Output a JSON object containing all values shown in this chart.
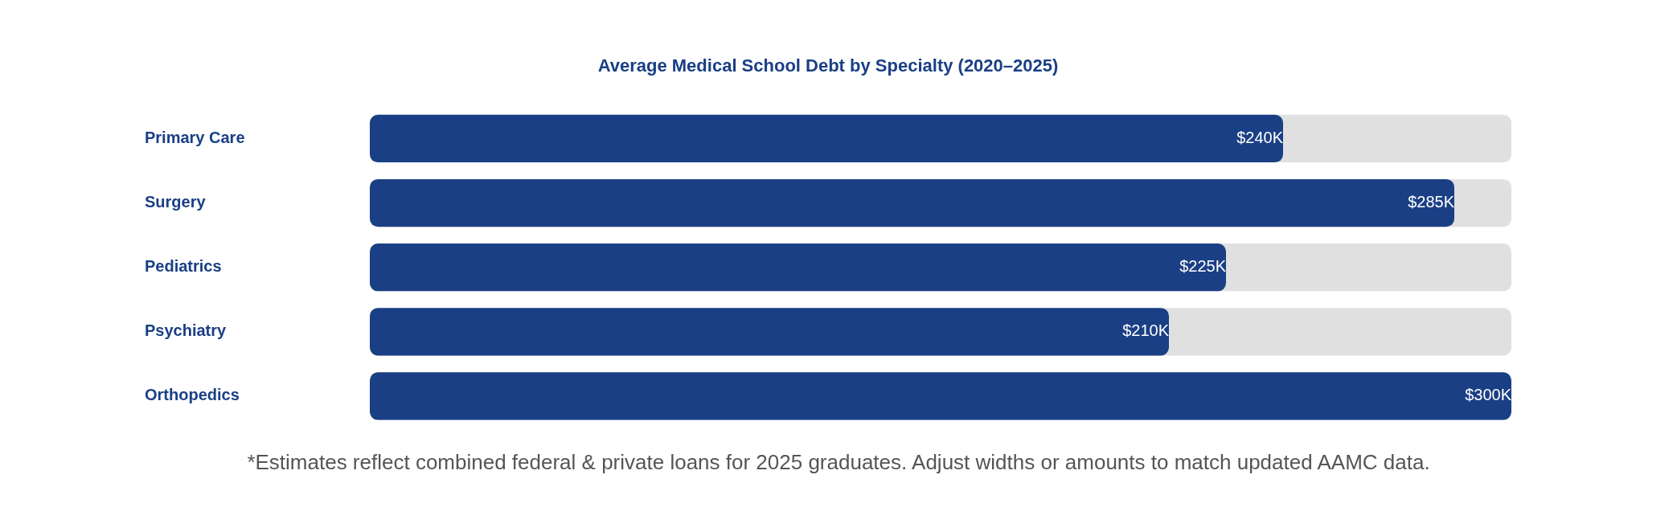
{
  "chart_data": {
    "type": "bar",
    "orientation": "horizontal",
    "title": "Average Medical School Debt by Specialty (2020–2025)",
    "categories": [
      "Primary Care",
      "Surgery",
      "Pediatrics",
      "Psychiatry",
      "Orthopedics"
    ],
    "values": [
      240,
      285,
      225,
      210,
      300
    ],
    "value_labels": [
      "$240K",
      "$285K",
      "$225K",
      "$210K",
      "$300K"
    ],
    "color": "#1a3f85",
    "xlim": [
      0,
      300
    ],
    "tick_labels": "y",
    "legend": false,
    "annotations": [
      "*Estimates reflect combined federal & private loans for 2025 graduates. Adjust widths or amounts to match updated AAMC data."
    ]
  }
}
